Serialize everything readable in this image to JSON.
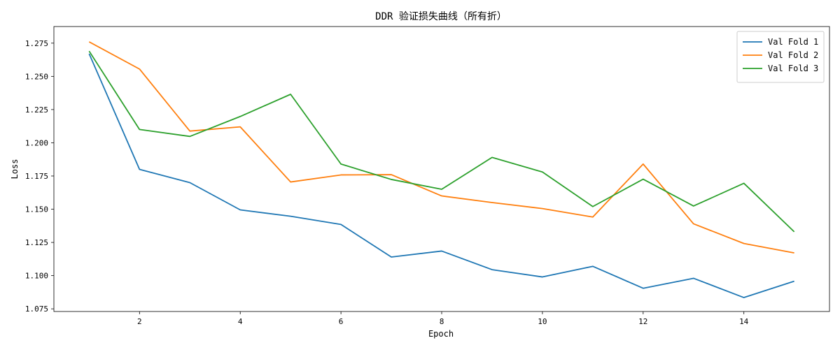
{
  "chart_data": {
    "type": "line",
    "title": "DDR 验证损失曲线（所有折）",
    "xlabel": "Epoch",
    "ylabel": "Loss",
    "xlim": [
      0.3,
      15.7
    ],
    "ylim": [
      1.073,
      1.2875
    ],
    "xticks": [
      2,
      4,
      6,
      8,
      10,
      12,
      14
    ],
    "yticks": [
      1.075,
      1.1,
      1.125,
      1.15,
      1.175,
      1.2,
      1.225,
      1.25,
      1.275
    ],
    "ytick_labels": [
      "1.075",
      "1.100",
      "1.125",
      "1.150",
      "1.175",
      "1.200",
      "1.225",
      "1.250",
      "1.275"
    ],
    "grid": false,
    "legend_position": "top-right",
    "x": [
      1,
      2,
      3,
      4,
      5,
      6,
      7,
      8,
      9,
      10,
      11,
      12,
      13,
      14,
      15
    ],
    "series": [
      {
        "name": "Val Fold 1",
        "color": "#1f77b4",
        "values": [
          1.267,
          1.18,
          1.17,
          1.1495,
          1.1447,
          1.1385,
          1.114,
          1.1185,
          1.1045,
          1.099,
          1.107,
          1.0905,
          1.098,
          1.0835,
          1.0958
        ]
      },
      {
        "name": "Val Fold 2",
        "color": "#ff7f0e",
        "values": [
          1.276,
          1.2555,
          1.2088,
          1.212,
          1.1705,
          1.1758,
          1.176,
          1.16,
          1.155,
          1.1505,
          1.1441,
          1.184,
          1.139,
          1.1242,
          1.1171
        ]
      },
      {
        "name": "Val Fold 3",
        "color": "#2ca02c",
        "values": [
          1.269,
          1.21,
          1.2048,
          1.2198,
          1.2365,
          1.184,
          1.1724,
          1.165,
          1.189,
          1.178,
          1.152,
          1.1726,
          1.1524,
          1.1695,
          1.133
        ]
      }
    ]
  }
}
